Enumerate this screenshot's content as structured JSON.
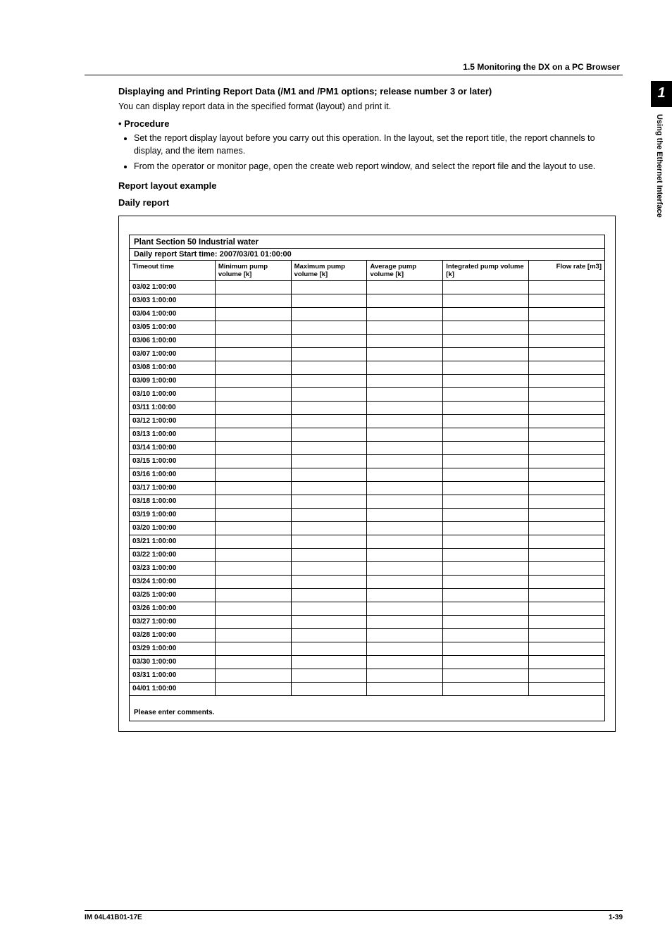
{
  "header": {
    "section_ref": "1.5  Monitoring the DX on a PC Browser"
  },
  "sidetab": {
    "chapter_num": "1",
    "chapter_title": "Using the Ethernet Interface"
  },
  "body": {
    "title": "Displaying and Printing Report Data (/M1 and /PM1 options; release number 3 or later)",
    "intro": "You can display report data in the specified format (layout) and print it.",
    "procedure_label": "•  Procedure",
    "procedure_items": [
      "Set the report display layout before you carry out this operation. In the layout, set the report title, the report channels to display, and the item names.",
      "From the operator or monitor page, open the create web report window, and select the report file and the layout to use."
    ],
    "layout_example_label": "Report layout example",
    "daily_report_label": "Daily report"
  },
  "report": {
    "title": "Plant  Section 50  Industrial water",
    "subtitle": "Daily report  Start time: 2007/03/01 01:00:00",
    "columns": [
      "Timeout time",
      "Minimum pump volume [k]",
      "Maximum pump volume [k]",
      "Average pump volume [k]",
      "Integrated pump volume [k]",
      "Flow rate [m3]"
    ],
    "rows": [
      "03/02 1:00:00",
      "03/03 1:00:00",
      "03/04 1:00:00",
      "03/05 1:00:00",
      "03/06 1:00:00",
      "03/07 1:00:00",
      "03/08 1:00:00",
      "03/09 1:00:00",
      "03/10 1:00:00",
      "03/11 1:00:00",
      "03/12 1:00:00",
      "03/13 1:00:00",
      "03/14 1:00:00",
      "03/15 1:00:00",
      "03/16 1:00:00",
      "03/17 1:00:00",
      "03/18 1:00:00",
      "03/19 1:00:00",
      "03/20 1:00:00",
      "03/21 1:00:00",
      "03/22 1:00:00",
      "03/23 1:00:00",
      "03/24 1:00:00",
      "03/25 1:00:00",
      "03/26 1:00:00",
      "03/27 1:00:00",
      "03/28 1:00:00",
      "03/29 1:00:00",
      "03/30 1:00:00",
      "03/31 1:00:00",
      "04/01 1:00:00"
    ],
    "comments_label": "Please enter comments."
  },
  "footer": {
    "doc_id": "IM 04L41B01-17E",
    "page_num": "1-39"
  },
  "colors": {
    "text": "#000000",
    "background": "#ffffff",
    "tab_bg": "#000000",
    "tab_fg": "#ffffff",
    "rule": "#000000"
  }
}
